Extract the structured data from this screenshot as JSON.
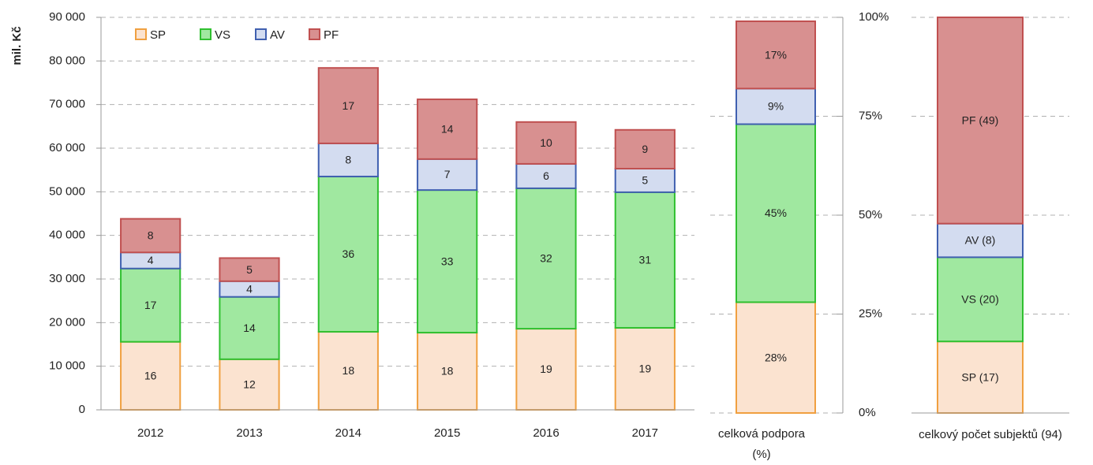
{
  "chart_data": [
    {
      "type": "bar",
      "stacked": true,
      "ylabel": "mil. Kč",
      "categories": [
        "2012",
        "2013",
        "2014",
        "2015",
        "2016",
        "2017"
      ],
      "series": [
        {
          "name": "SP",
          "color": "#fbe3d0",
          "edgecolor": "#f0a040",
          "values": [
            15600,
            11600,
            17900,
            17700,
            18600,
            18800
          ],
          "value_labels": [
            "16",
            "12",
            "18",
            "18",
            "19",
            "19"
          ]
        },
        {
          "name": "VS",
          "color": "#a0e8a0",
          "edgecolor": "#30c030",
          "values": [
            16800,
            14300,
            35600,
            32700,
            32200,
            31100
          ],
          "value_labels": [
            "17",
            "14",
            "36",
            "33",
            "32",
            "31"
          ]
        },
        {
          "name": "AV",
          "color": "#d3dcf0",
          "edgecolor": "#4060b0",
          "values": [
            3700,
            3600,
            7600,
            7100,
            5600,
            5400
          ],
          "value_labels": [
            "4",
            "4",
            "8",
            "7",
            "6",
            "5"
          ]
        },
        {
          "name": "PF",
          "color": "#d89090",
          "edgecolor": "#c05050",
          "values": [
            7700,
            5300,
            17300,
            13700,
            9600,
            8900
          ],
          "value_labels": [
            "8",
            "5",
            "17",
            "14",
            "10",
            "9"
          ]
        }
      ],
      "ylim": [
        0,
        90000
      ],
      "yticks": [
        0,
        {
          "value": 10000,
          "label": "10 000"
        },
        {
          "value": 20000,
          "label": "20 000"
        },
        {
          "value": 30000,
          "label": "30 000"
        },
        {
          "value": 40000,
          "label": "40 000"
        },
        {
          "value": 50000,
          "label": "50 000"
        },
        {
          "value": 60000,
          "label": "60 000"
        },
        {
          "value": 70000,
          "label": "70 000"
        },
        {
          "value": 80000,
          "label": "80 000"
        },
        {
          "value": 90000,
          "label": "90 000"
        }
      ],
      "grid": true,
      "legend": "upper left"
    },
    {
      "type": "bar",
      "stacked": true,
      "categories": [
        "celková podpora (%)"
      ],
      "series": [
        {
          "color": "#fbe3d0",
          "edgecolor": "#f0a040",
          "values": [
            28
          ],
          "value_labels": [
            "28%"
          ]
        },
        {
          "color": "#a0e8a0",
          "edgecolor": "#30c030",
          "values": [
            45
          ],
          "value_labels": [
            "45%"
          ]
        },
        {
          "color": "#d3dcf0",
          "edgecolor": "#4060b0",
          "values": [
            9
          ],
          "value_labels": [
            "9%"
          ]
        },
        {
          "color": "#d89090",
          "edgecolor": "#c05050",
          "values": [
            17
          ],
          "value_labels": [
            "17%"
          ]
        }
      ],
      "ylim": [
        0,
        100
      ],
      "yticks": [
        {
          "value": 0,
          "label": "0%"
        },
        {
          "value": 25,
          "label": "25%"
        },
        {
          "value": 50,
          "label": "50%"
        },
        {
          "value": 75,
          "label": "75%"
        },
        {
          "value": 100,
          "label": "100%"
        }
      ],
      "grid": true
    },
    {
      "type": "bar",
      "stacked": true,
      "categories": [
        "celkový počet subjektů (94)"
      ],
      "series": [
        {
          "color": "#fbe3d0",
          "edgecolor": "#f0a040",
          "values": [
            17
          ],
          "value_labels": [
            "SP (17)"
          ]
        },
        {
          "color": "#a0e8a0",
          "edgecolor": "#30c030",
          "values": [
            20
          ],
          "value_labels": [
            "VS (20)"
          ]
        },
        {
          "color": "#d3dcf0",
          "edgecolor": "#4060b0",
          "values": [
            8
          ],
          "value_labels": [
            "AV (8)"
          ]
        },
        {
          "color": "#d89090",
          "edgecolor": "#c05050",
          "values": [
            49
          ],
          "value_labels": [
            "PF (49)"
          ]
        }
      ],
      "ylim": [
        0,
        94
      ],
      "grid": true
    }
  ]
}
